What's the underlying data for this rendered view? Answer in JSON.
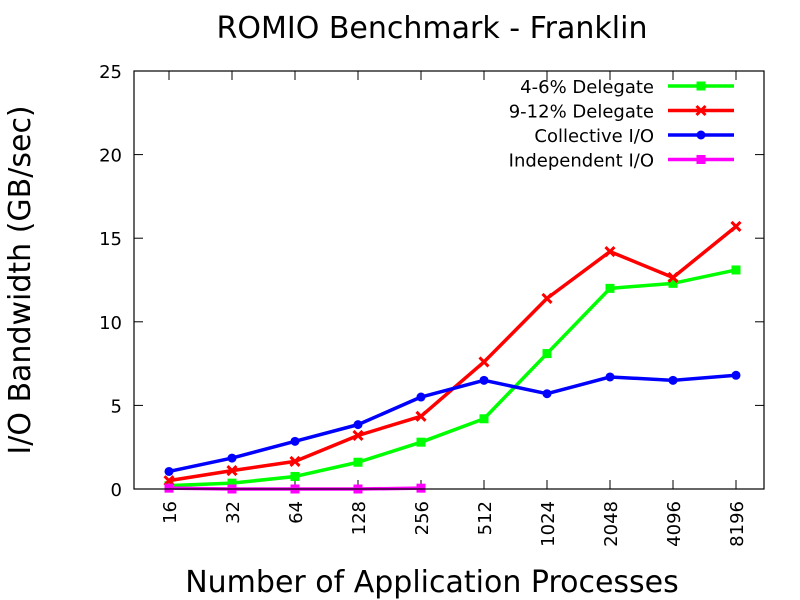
{
  "chart_data": {
    "type": "line",
    "title": "ROMIO Benchmark - Franklin",
    "xlabel": "Number of Application Processes",
    "ylabel": "I/O Bandwidth (GB/sec)",
    "categories": [
      "16",
      "32",
      "64",
      "128",
      "256",
      "512",
      "1024",
      "2048",
      "4096",
      "8196"
    ],
    "ylim": [
      0,
      25
    ],
    "yticks": [
      "0",
      "5",
      "10",
      "15",
      "20",
      "25"
    ],
    "grid": false,
    "legend_position": "top-right",
    "series": [
      {
        "name": "4-6% Delegate",
        "color": "#00ff00",
        "marker": "square",
        "values": [
          0.2,
          0.35,
          0.75,
          1.6,
          2.8,
          4.2,
          8.1,
          12.0,
          12.3,
          13.1
        ]
      },
      {
        "name": "9-12% Delegate",
        "color": "#ff0000",
        "marker": "x",
        "values": [
          0.5,
          1.1,
          1.65,
          3.2,
          4.35,
          7.6,
          11.4,
          14.2,
          12.65,
          15.7
        ]
      },
      {
        "name": "Collective I/O",
        "color": "#0000ff",
        "marker": "circle",
        "values": [
          1.05,
          1.85,
          2.85,
          3.85,
          5.5,
          6.5,
          5.7,
          6.7,
          6.5,
          6.8
        ]
      },
      {
        "name": "Independent I/O",
        "color": "#ff00ff",
        "marker": "square",
        "values": [
          0.05,
          0.0,
          0.0,
          0.0,
          0.05,
          null,
          null,
          null,
          null,
          null
        ]
      }
    ]
  }
}
